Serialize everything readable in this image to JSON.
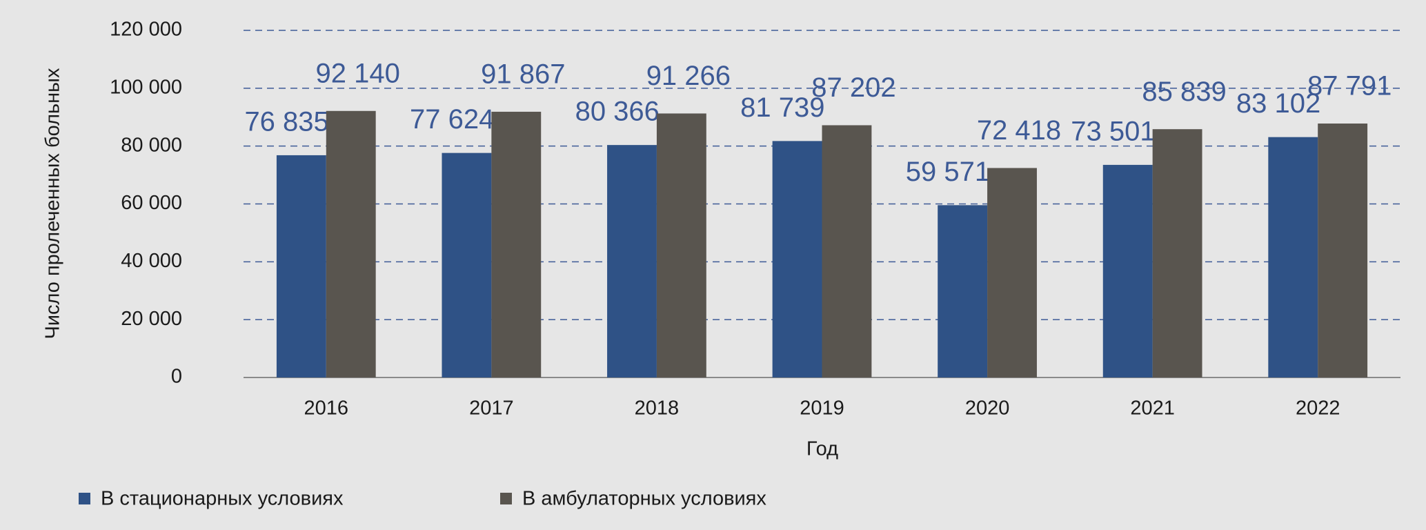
{
  "chart_data": {
    "type": "bar",
    "y_label": "Число пролеченных больных",
    "x_label": "Год",
    "categories": [
      "2016",
      "2017",
      "2018",
      "2019",
      "2020",
      "2021",
      "2022"
    ],
    "series": [
      {
        "name": "В стационарных условиях",
        "color": "#2f5286",
        "values": [
          76835,
          77624,
          80366,
          81739,
          59571,
          73501,
          83102
        ],
        "value_labels": [
          "76 835",
          "77 624",
          "80 366",
          "81 739",
          "59 571",
          "73 501",
          "83 102"
        ]
      },
      {
        "name": "В амбулаторных условиях",
        "color": "#59554f",
        "values": [
          92140,
          91867,
          91266,
          87202,
          72418,
          85839,
          87791
        ],
        "value_labels": [
          "92 140",
          "91 867",
          "91 266",
          "87 202",
          "72 418",
          "85 839",
          "87 791"
        ]
      }
    ],
    "ylim": [
      0,
      120000
    ],
    "yticks": [
      0,
      {
        "value": 20000,
        "label": "20 000"
      },
      {
        "value": 40000,
        "label": "40 000"
      },
      {
        "value": 60000,
        "label": "60 000"
      },
      {
        "value": 80000,
        "label": "80 000"
      },
      {
        "value": 100000,
        "label": "100 000"
      },
      {
        "value": 120000,
        "label": "120 000"
      }
    ],
    "grid": true,
    "legend": "bottom"
  }
}
